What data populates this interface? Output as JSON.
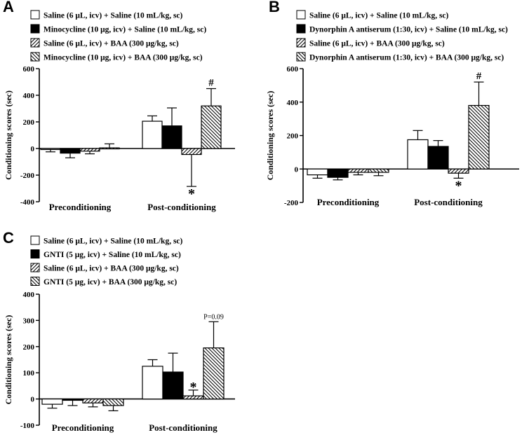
{
  "chart_data": [
    {
      "panel": "A",
      "type": "bar",
      "ylabel": "Conditioning scores (sec)",
      "ylim": [
        -400,
        600
      ],
      "yticks": [
        600,
        400,
        200,
        0,
        -200,
        -400
      ],
      "categories": [
        "Preconditioning",
        "Post-conditioning"
      ],
      "legend_position": "top-left",
      "series": [
        {
          "name": "Saline (6 μL, icv) + Saline (10 mL/kg, sc)",
          "fill": "white",
          "values": [
            -5,
            205
          ],
          "errors": [
            20,
            40
          ]
        },
        {
          "name": "Minocycline (10 μg, icv) + Saline (10 mL/kg, sc)",
          "fill": "black",
          "values": [
            -35,
            170
          ],
          "errors": [
            35,
            135
          ]
        },
        {
          "name": "Saline (6 μL, icv) + BAA (300 μg/kg, sc)",
          "fill": "hatch-forward",
          "values": [
            -20,
            -45
          ],
          "errors": [
            20,
            240
          ]
        },
        {
          "name": "Minocycline (10 μg, icv) + BAA (300 μg/kg, sc)",
          "fill": "hatch-back",
          "values": [
            5,
            320
          ],
          "errors": [
            30,
            130
          ]
        }
      ],
      "annotations": [
        {
          "series": 2,
          "category": 1,
          "text": "*",
          "position": "below"
        },
        {
          "series": 3,
          "category": 1,
          "text": "#",
          "position": "above"
        }
      ]
    },
    {
      "panel": "B",
      "type": "bar",
      "ylabel": "Conditioning scores (sec)",
      "ylim": [
        -200,
        600
      ],
      "yticks": [
        600,
        400,
        200,
        0,
        -200
      ],
      "categories": [
        "Preconditioning",
        "Post-conditioning"
      ],
      "legend_position": "top-left",
      "series": [
        {
          "name": "Saline (6 μL, icv) + Saline (10 mL/kg, sc)",
          "fill": "white",
          "values": [
            -35,
            175
          ],
          "errors": [
            20,
            55
          ]
        },
        {
          "name": "Dynorphin A antiserum (1:30, icv) + Saline (10 mL/kg, sc)",
          "fill": "black",
          "values": [
            -50,
            135
          ],
          "errors": [
            15,
            35
          ]
        },
        {
          "name": "Saline (6 μL, icv) + BAA (300 μg/kg, sc)",
          "fill": "hatch-forward",
          "values": [
            -20,
            -25
          ],
          "errors": [
            15,
            30
          ]
        },
        {
          "name": "Dynorphin A antiserum (1:30, icv) + BAA (300 μg/kg, sc)",
          "fill": "hatch-back",
          "values": [
            -20,
            380
          ],
          "errors": [
            20,
            140
          ]
        }
      ],
      "annotations": [
        {
          "series": 2,
          "category": 1,
          "text": "*",
          "position": "below"
        },
        {
          "series": 3,
          "category": 1,
          "text": "#",
          "position": "above"
        }
      ]
    },
    {
      "panel": "C",
      "type": "bar",
      "ylabel": "Conditioning scores (sec)",
      "ylim": [
        -100,
        400
      ],
      "yticks": [
        400,
        300,
        200,
        100,
        0,
        -100
      ],
      "categories": [
        "Preconditioning",
        "Post-conditioning"
      ],
      "legend_position": "top-left",
      "series": [
        {
          "name": "Saline (6 μL, icv) + Saline (10 mL/kg, sc)",
          "fill": "white",
          "values": [
            -20,
            125
          ],
          "errors": [
            15,
            25
          ]
        },
        {
          "name": "GNTI (5 μg, icv) + Saline (10 mL/kg, sc)",
          "fill": "black",
          "values": [
            -5,
            103
          ],
          "errors": [
            20,
            72
          ]
        },
        {
          "name": "Saline (6 μL, icv) + BAA (300 μg/kg, sc)",
          "fill": "hatch-forward",
          "values": [
            -15,
            12
          ],
          "errors": [
            15,
            22
          ]
        },
        {
          "name": "GNTI (5 μg, icv) + BAA (300 μg/kg, sc)",
          "fill": "hatch-back",
          "values": [
            -25,
            195
          ],
          "errors": [
            20,
            100
          ]
        }
      ],
      "annotations": [
        {
          "series": 2,
          "category": 1,
          "text": "*",
          "position": "above"
        },
        {
          "series": 3,
          "category": 1,
          "text": "P=0.09",
          "position": "above"
        }
      ]
    }
  ]
}
